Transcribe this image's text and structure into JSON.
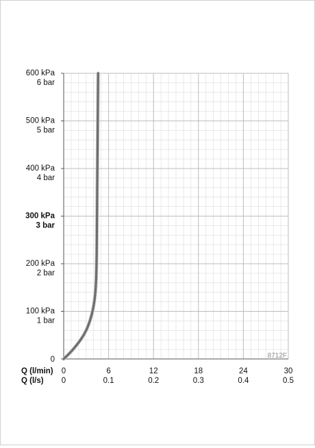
{
  "chart_data": {
    "type": "line",
    "x_axes": [
      {
        "label": "Q (l/min)",
        "ticks": [
          "0",
          "6",
          "12",
          "18",
          "24",
          "30"
        ]
      },
      {
        "label": "Q (l/s)",
        "ticks": [
          "0",
          "0.1",
          "0.2",
          "0.3",
          "0.4",
          "0.5"
        ]
      }
    ],
    "xlim": [
      0,
      30
    ],
    "ylim": [
      0,
      600
    ],
    "grid": true,
    "y_ticks": [
      {
        "value": 0,
        "kpa": "0",
        "bar": "",
        "bold": false
      },
      {
        "value": 100,
        "kpa": "100 kPa",
        "bar": "1 bar",
        "bold": false
      },
      {
        "value": 200,
        "kpa": "200 kPa",
        "bar": "2 bar",
        "bold": false
      },
      {
        "value": 300,
        "kpa": "300 kPa",
        "bar": "3 bar",
        "bold": true
      },
      {
        "value": 400,
        "kpa": "400 kPa",
        "bar": "4 bar",
        "bold": false
      },
      {
        "value": 500,
        "kpa": "500 kPa",
        "bar": "5 bar",
        "bold": false
      },
      {
        "value": 600,
        "kpa": "600 kPa",
        "bar": "6 bar",
        "bold": false
      }
    ],
    "series": [
      {
        "color": "#6e6e6e",
        "points": [
          [
            0,
            0
          ],
          [
            0.8,
            12
          ],
          [
            1.8,
            30
          ],
          [
            2.7,
            50
          ],
          [
            3.3,
            70
          ],
          [
            3.8,
            95
          ],
          [
            4.1,
            120
          ],
          [
            4.3,
            150
          ],
          [
            4.4,
            200
          ],
          [
            4.45,
            300
          ],
          [
            4.5,
            400
          ],
          [
            4.55,
            500
          ],
          [
            4.6,
            600
          ]
        ]
      }
    ],
    "annotation": "8712F"
  }
}
